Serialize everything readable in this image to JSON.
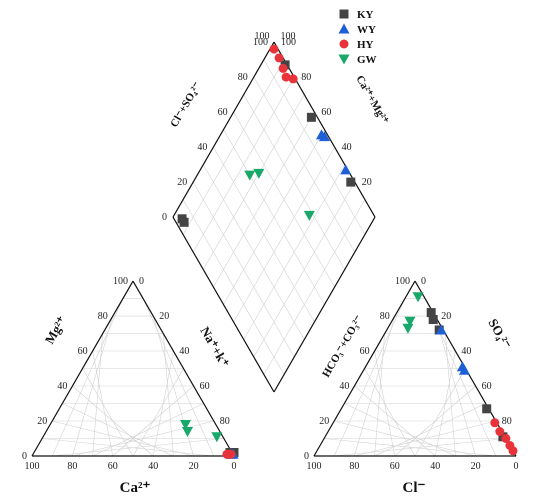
{
  "chart_data": {
    "type": "scatter",
    "subtype": "piper-diagram",
    "colors": {
      "KY": "#444444",
      "WY": "#1f5fd6",
      "HY": "#e8333a",
      "GW": "#18a86a",
      "grid": "#d2d2d2",
      "frame": "#111111"
    },
    "legend": {
      "position": "top-center",
      "entries": [
        {
          "name": "KY",
          "marker": "square"
        },
        {
          "name": "WY",
          "marker": "triangle-up"
        },
        {
          "name": "HY",
          "marker": "circle"
        },
        {
          "name": "GW",
          "marker": "triangle-down"
        }
      ]
    },
    "ternary_ticks": [
      "0",
      "20",
      "40",
      "60",
      "80",
      "100"
    ],
    "ternary_ticks_partial": [
      "20",
      "40",
      "60",
      "80",
      "100"
    ],
    "cation_triangle": {
      "labels": {
        "base": "Ca²⁺",
        "left": "Mg²⁺",
        "right": "Na⁺+k⁺"
      },
      "series": [
        {
          "name": "KY",
          "points": [
            {
              "ca": 2,
              "mg": 2
            },
            {
              "ca": 1,
              "mg": 2
            },
            {
              "ca": 3,
              "mg": 2
            }
          ]
        },
        {
          "name": "WY",
          "points": [
            {
              "ca": 2,
              "mg": 1
            },
            {
              "ca": 1,
              "mg": 1
            }
          ]
        },
        {
          "name": "HY",
          "points": [
            {
              "ca": 3,
              "mg": 1
            },
            {
              "ca": 2,
              "mg": 1
            },
            {
              "ca": 4,
              "mg": 1
            }
          ]
        },
        {
          "name": "GW",
          "points": [
            {
              "ca": 33,
              "mg": 18
            },
            {
              "ca": 30,
              "mg": 14
            },
            {
              "ca": 14,
              "mg": 11
            }
          ]
        }
      ]
    },
    "anion_triangle": {
      "labels": {
        "base": "Cl⁻",
        "left": "HCO₃⁻+CO₃²⁻",
        "right": "SO₄²⁻"
      },
      "series": [
        {
          "name": "KY",
          "points": [
            {
              "cl": 17,
              "hco3": 1
            },
            {
              "cl": 20,
              "hco3": 2
            },
            {
              "cl": 26,
              "hco3": 2
            },
            {
              "cl": 72,
              "hco3": 1
            },
            {
              "cl": 88,
              "hco3": 1
            }
          ]
        },
        {
          "name": "WY",
          "points": [
            {
              "cl": 27,
              "hco3": 1
            },
            {
              "cl": 48,
              "hco3": 1
            },
            {
              "cl": 50,
              "hco3": 1
            }
          ]
        },
        {
          "name": "HY",
          "points": [
            {
              "cl": 80,
              "hco3": 1
            },
            {
              "cl": 85,
              "hco3": 1
            },
            {
              "cl": 90,
              "hco3": 0
            },
            {
              "cl": 94,
              "hco3": 0
            },
            {
              "cl": 97,
              "hco3": 0
            }
          ]
        },
        {
          "name": "GW",
          "points": [
            {
              "cl": 10,
              "hco3": 17
            },
            {
              "cl": 9,
              "hco3": 14
            },
            {
              "cl": 6,
              "hco3": 3
            }
          ]
        }
      ]
    },
    "diamond": {
      "labels": {
        "upper_left": "Cl⁻+SO₄²⁻",
        "upper_right": "Ca²⁺+Mg²⁺"
      },
      "series": [
        {
          "name": "KY",
          "points": [
            {
              "u": 95,
              "v": 4
            },
            {
              "u": 93,
              "v": 4
            },
            {
              "u": 60,
              "v": 97
            },
            {
              "u": 88,
              "v": 99
            },
            {
              "u": 22,
              "v": 98
            }
          ]
        },
        {
          "name": "WY",
          "points": [
            {
              "u": 48,
              "v": 98
            },
            {
              "u": 50,
              "v": 97
            },
            {
              "u": 28,
              "v": 99
            }
          ]
        },
        {
          "name": "HY",
          "points": [
            {
              "u": 88,
              "v": 97
            },
            {
              "u": 93,
              "v": 98
            },
            {
              "u": 98,
              "v": 98
            },
            {
              "u": 84,
              "v": 96
            },
            {
              "u": 80,
              "v": 99
            }
          ]
        },
        {
          "name": "GW",
          "points": [
            {
              "u": 70,
              "v": 55
            },
            {
              "u": 74,
              "v": 50
            },
            {
              "u": 33,
              "v": 68
            }
          ]
        }
      ]
    }
  }
}
